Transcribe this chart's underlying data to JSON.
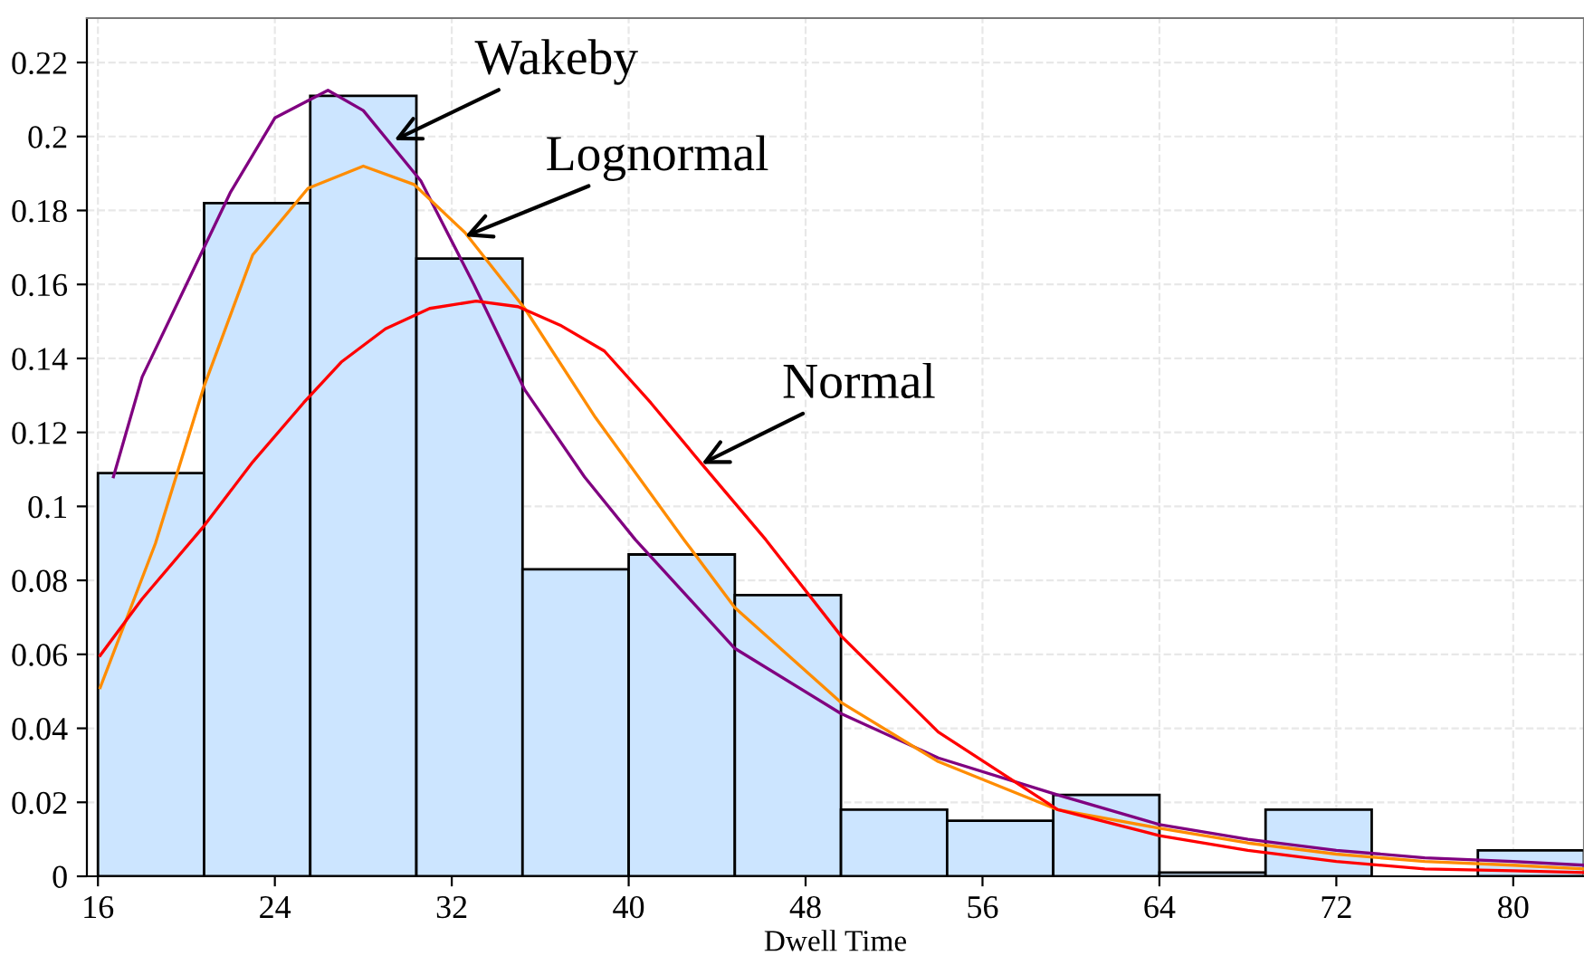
{
  "chart_data": {
    "type": "histogram",
    "xlabel": "Dwell Time",
    "bins": [
      16,
      20.8,
      25.6,
      30.4,
      35.2,
      40,
      44.8,
      49.6,
      54.4,
      59.2,
      64,
      68.8,
      73.6,
      78.4,
      83.2
    ],
    "values": [
      0.109,
      0.182,
      0.211,
      0.167,
      0.083,
      0.087,
      0.076,
      0.018,
      0.015,
      0.022,
      0.001,
      0.018,
      0,
      0.007
    ],
    "color": "#cce5ff",
    "series": [
      {
        "type": "line",
        "color": "#800080",
        "x": [
          16.7,
          18,
          20,
          22,
          24,
          26.4,
          28,
          30.6,
          33,
          35.3,
          38,
          40.3,
          44.8,
          49.6,
          54,
          59.4,
          64,
          68,
          72,
          76,
          80,
          83.2
        ],
        "values": [
          0.108,
          0.135,
          0.16,
          0.185,
          0.205,
          0.2125,
          0.207,
          0.188,
          0.16,
          0.1315,
          0.108,
          0.091,
          0.0616,
          0.044,
          0.032,
          0.022,
          0.014,
          0.01,
          0.007,
          0.005,
          0.004,
          0.003
        ]
      },
      {
        "type": "line",
        "color": "#ff8c00",
        "x": [
          16.1,
          18.6,
          20.8,
          23,
          25.5,
          28,
          30.3,
          32.6,
          35.3,
          38.5,
          42.5,
          44.8,
          49.6,
          54,
          59.4,
          64,
          68,
          72,
          76,
          80,
          83.2
        ],
        "values": [
          0.051,
          0.09,
          0.1325,
          0.168,
          0.186,
          0.192,
          0.187,
          0.174,
          0.1535,
          0.124,
          0.091,
          0.0726,
          0.047,
          0.031,
          0.018,
          0.013,
          0.009,
          0.006,
          0.004,
          0.003,
          0.002
        ]
      },
      {
        "type": "line",
        "color": "#ff0000",
        "x": [
          16.1,
          18,
          20.7,
          23,
          25.3,
          27,
          29,
          31,
          33.1,
          35,
          36.9,
          38.9,
          41,
          43.3,
          46.2,
          49.6,
          54,
          59.4,
          64,
          68,
          72,
          76,
          80,
          83.2
        ],
        "values": [
          0.0597,
          0.075,
          0.094,
          0.112,
          0.128,
          0.139,
          0.148,
          0.1535,
          0.1555,
          0.154,
          0.149,
          0.142,
          0.128,
          0.1115,
          0.091,
          0.065,
          0.039,
          0.018,
          0.011,
          0.007,
          0.004,
          0.002,
          0.0015,
          0.001
        ]
      }
    ],
    "annotations": [
      {
        "text": "Wakeby",
        "x": 29.4,
        "y": 0.199
      },
      {
        "text": "Lognormal",
        "x": 32.6,
        "y": 0.173
      },
      {
        "text": "Normal",
        "x": 43.3,
        "y": 0.1115
      }
    ],
    "xlim": [
      15.5,
      83.2
    ],
    "ylim": [
      0,
      0.232
    ],
    "xticks": [
      16,
      24,
      32,
      40,
      48,
      56,
      64,
      72,
      80
    ],
    "yticks": [
      0,
      0.02,
      0.04,
      0.06,
      0.08,
      0.1,
      0.12,
      0.14,
      0.16,
      0.18,
      0.2,
      0.22
    ],
    "grid": true
  }
}
